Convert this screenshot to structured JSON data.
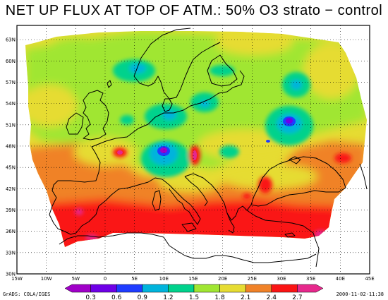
{
  "title": "NET UP FLUX AT TOP OF ATM.: 50% O3 strato − control",
  "map": {
    "projection": "lat-lon",
    "lon_range": [
      -15,
      45
    ],
    "lat_range": [
      30,
      65
    ],
    "lon_ticks": [
      "15W",
      "10W",
      "5W",
      "0",
      "5E",
      "10E",
      "15E",
      "20E",
      "25E",
      "30E",
      "35E",
      "40E",
      "45E"
    ],
    "lat_ticks": [
      "63N",
      "60N",
      "57N",
      "54N",
      "51N",
      "48N",
      "45N",
      "42N",
      "39N",
      "36N",
      "33N",
      "30N"
    ],
    "grid": "dotted",
    "coastlines": true
  },
  "colorbar": {
    "labels": [
      "0.3",
      "0.6",
      "0.9",
      "1.2",
      "1.5",
      "1.8",
      "2.1",
      "2.4",
      "2.7"
    ],
    "colors": [
      "#a000c8",
      "#6e00e6",
      "#1e3cff",
      "#00b4dc",
      "#00d28c",
      "#a0e632",
      "#e6dc32",
      "#f08228",
      "#fa1414",
      "#e6288c"
    ]
  },
  "credits": {
    "left": "GrADS: COLA/IGES",
    "right": "2000-11-02-11:38"
  },
  "chart_data": {
    "type": "heatmap",
    "title": "NET UP FLUX AT TOP OF ATM.: 50% O3 strato − control",
    "x": "longitude (15W–45E)",
    "y": "latitude (30N–65N)",
    "levels": [
      0.3,
      0.6,
      0.9,
      1.2,
      1.5,
      1.8,
      2.1,
      2.4,
      2.7
    ],
    "features": [
      {
        "lon": 30.5,
        "lat": 51.5,
        "value": 0.6
      },
      {
        "lon": 9.5,
        "lat": 47.5,
        "value": 0.6
      },
      {
        "lon": 15.5,
        "lat": 46.5,
        "value": 2.7
      },
      {
        "lon": 2.5,
        "lat": 47,
        "value": 2.7
      },
      {
        "lon": 27,
        "lat": 42.5,
        "value": 2.4
      },
      {
        "lon": 40.5,
        "lat": 46.5,
        "value": 2.7
      },
      {
        "lon": 12,
        "lat": 59.5,
        "value": 1.2
      },
      {
        "lon": 25,
        "lat": 56.5,
        "value": 1.2
      },
      {
        "lon": 10,
        "lat": 51,
        "value": 1.2
      },
      {
        "lon": 18.5,
        "lat": 48,
        "value": 1.2
      },
      {
        "lon": 5,
        "lat": 38,
        "value": 2.7
      }
    ]
  }
}
